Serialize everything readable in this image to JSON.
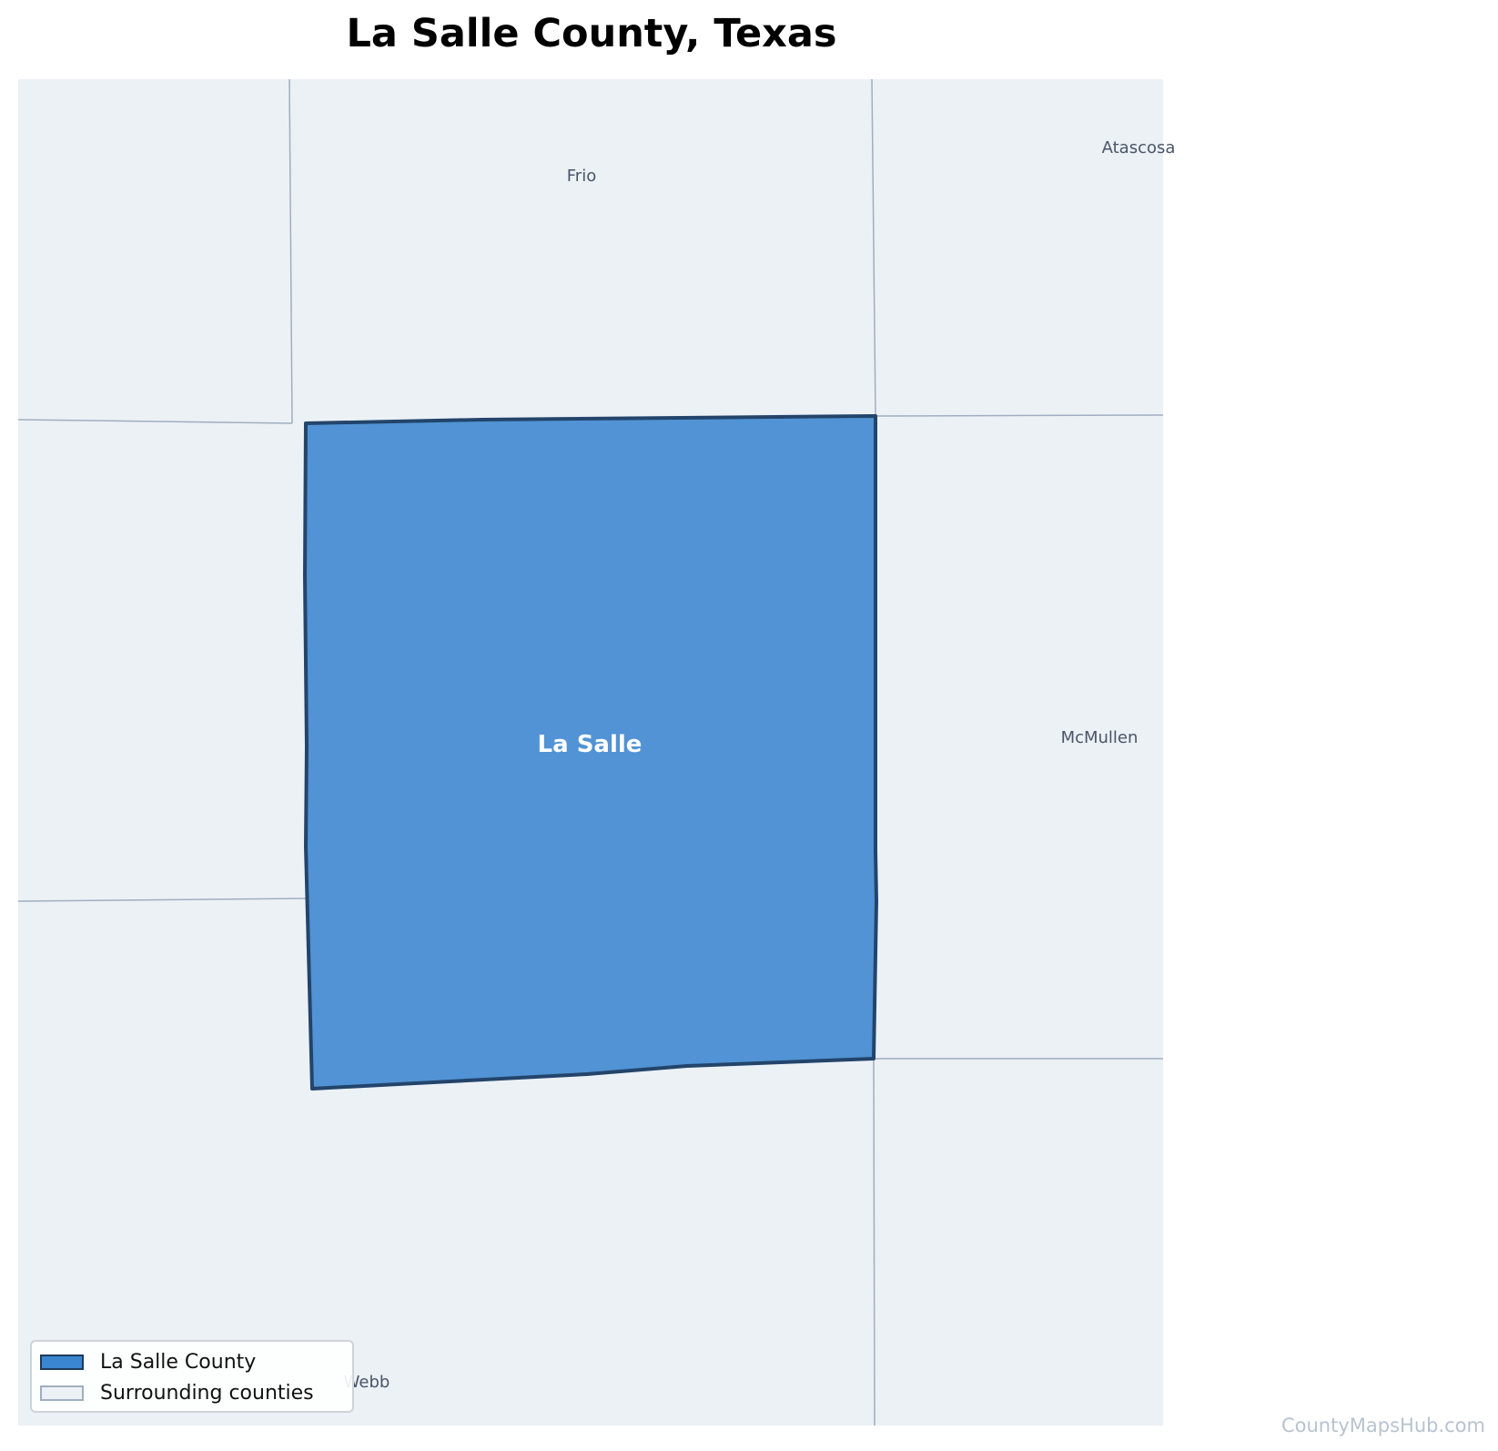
{
  "title": "La Salle County, Texas",
  "colors": {
    "background_counties": "#ecf1f6",
    "county_borders": "#a0aec0",
    "highlight_fill": "#5193d4",
    "highlight_stroke": "#23446b",
    "label_text": "#4a5568",
    "highlight_label": "#ffffff"
  },
  "map": {
    "highlighted_county": {
      "name": "La Salle"
    },
    "county_labels": {
      "frio": "Frio",
      "atascosa": "Atascosa",
      "mcmullen": "McMullen",
      "webb": "Webb"
    }
  },
  "legend": {
    "items": [
      {
        "label": "La Salle County",
        "fill": "#3a86cf",
        "stroke": "#1e3a5c"
      },
      {
        "label": "Surrounding counties",
        "fill": "#ecf1f6",
        "stroke": "#a0aec0"
      }
    ]
  },
  "watermark": "CountyMapsHub.com"
}
